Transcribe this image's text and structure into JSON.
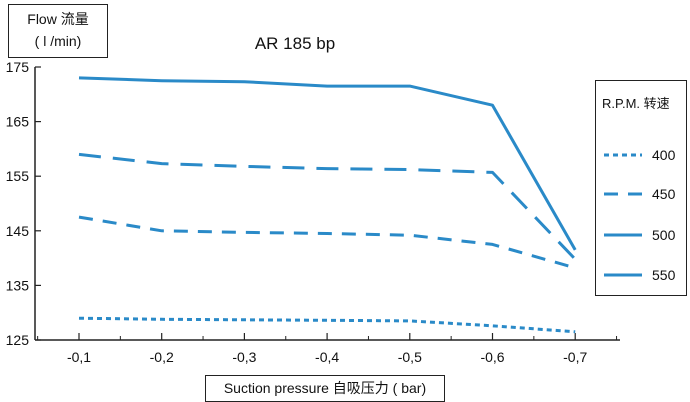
{
  "chart_data": {
    "type": "line",
    "title": "AR 185 bp",
    "ylabel_line1": "Flow 流量",
    "ylabel_line2": "( l /min)",
    "xlabel": "Suction pressure 自吸压力 ( bar)",
    "categories": [
      "-0,1",
      "-0,2",
      "-0,3",
      "-0,4",
      "-0,5",
      "-0,6",
      "-0,7"
    ],
    "ylim": [
      125,
      175
    ],
    "yticks": [
      "125",
      "135",
      "145",
      "155",
      "165",
      "175"
    ],
    "legend_title": "R.P.M. 转速",
    "legend_position": "right",
    "line_color": "#2a8ac8",
    "series": [
      {
        "name": "400",
        "style": "dotted",
        "values": [
          129,
          128.8,
          128.7,
          128.6,
          128.5,
          127.6,
          126.5
        ]
      },
      {
        "name": "450",
        "style": "dashed",
        "values": [
          147.5,
          145,
          144.7,
          144.5,
          144.2,
          142.5,
          138.2
        ]
      },
      {
        "name": "500",
        "style": "longdash",
        "values": [
          159,
          157.3,
          156.8,
          156.4,
          156.2,
          155.7,
          139.8
        ]
      },
      {
        "name": "550",
        "style": "solid",
        "values": [
          173,
          172.5,
          172.3,
          171.5,
          171.5,
          168,
          141.5
        ]
      }
    ]
  }
}
